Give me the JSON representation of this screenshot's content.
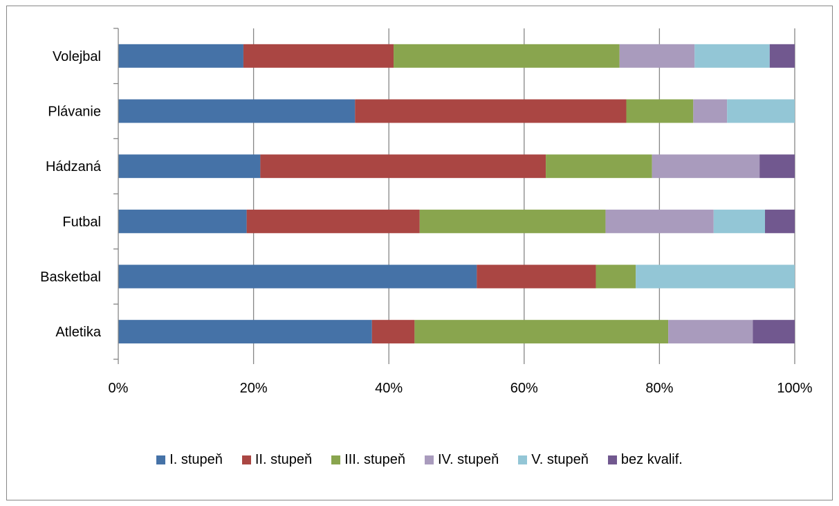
{
  "chart_data": {
    "type": "bar",
    "orientation": "horizontal",
    "stacked": "percent",
    "categories": [
      "Atletika",
      "Basketbal",
      "Futbal",
      "Hádzaná",
      "Plávanie",
      "Volejbal"
    ],
    "series": [
      {
        "name": "I. stupeň",
        "color": "#4572A7",
        "values": [
          37.5,
          53.0,
          19.0,
          21.0,
          35.0,
          18.5
        ]
      },
      {
        "name": "II. stupeň",
        "color": "#AA4643",
        "values": [
          6.3,
          17.6,
          25.6,
          42.2,
          40.1,
          22.2
        ]
      },
      {
        "name": "III. stupeň",
        "color": "#89A54E",
        "values": [
          37.5,
          5.9,
          27.5,
          15.7,
          9.9,
          33.4
        ]
      },
      {
        "name": "IV. stupeň",
        "color": "#A99BBD",
        "values": [
          12.5,
          0,
          16.0,
          15.9,
          5.0,
          11.1
        ]
      },
      {
        "name": "V. stupeň",
        "color": "#93C6D6",
        "values": [
          0,
          23.5,
          7.6,
          0,
          10.0,
          11.1
        ]
      },
      {
        "name": "bez kvalif.",
        "color": "#71588F",
        "values": [
          6.2,
          0,
          4.4,
          5.2,
          0,
          3.7
        ]
      }
    ],
    "x_ticks": [
      "0%",
      "20%",
      "40%",
      "60%",
      "80%",
      "100%"
    ],
    "xlim": [
      0,
      100
    ],
    "grid": "vertical",
    "legend_position": "bottom",
    "title": "",
    "xlabel": "",
    "ylabel": ""
  }
}
